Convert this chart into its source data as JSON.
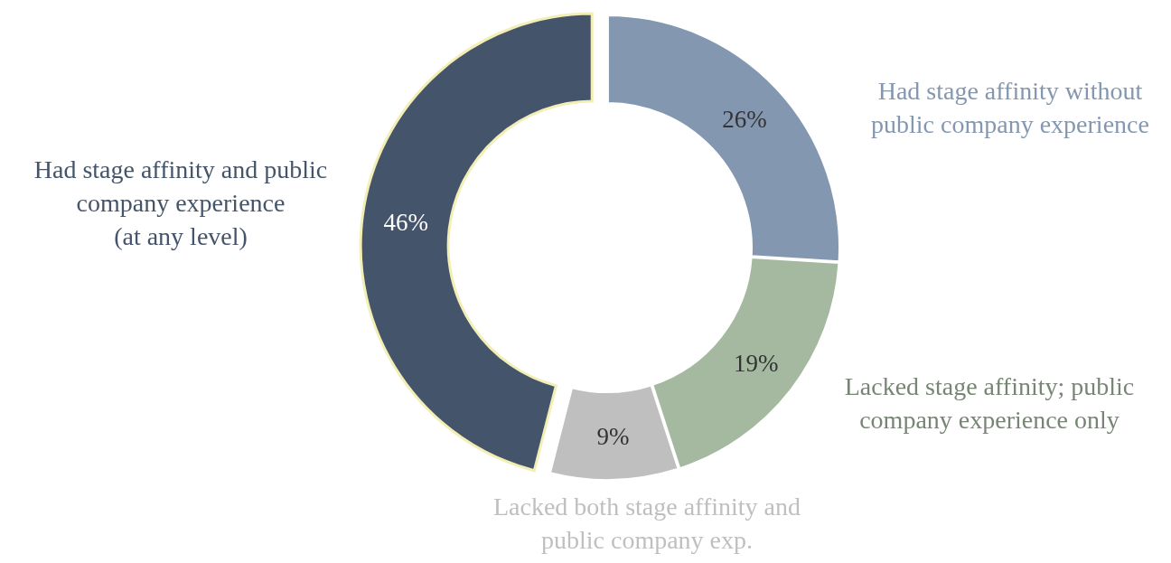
{
  "chart_data": {
    "type": "donut",
    "categories": [
      "Had stage affinity without\npublic company experience",
      "Lacked stage affinity; public\ncompany experience only",
      "Lacked both stage affinity and\npublic company exp.",
      "Had stage affinity and public\ncompany experience\n(at any level)"
    ],
    "values": [
      26,
      19,
      9,
      46
    ],
    "colors": [
      "#8497b0",
      "#a4b9a0",
      "#bfbfbf",
      "#44546a"
    ],
    "value_labels": [
      "26%",
      "19%",
      "9%",
      "46%"
    ]
  }
}
